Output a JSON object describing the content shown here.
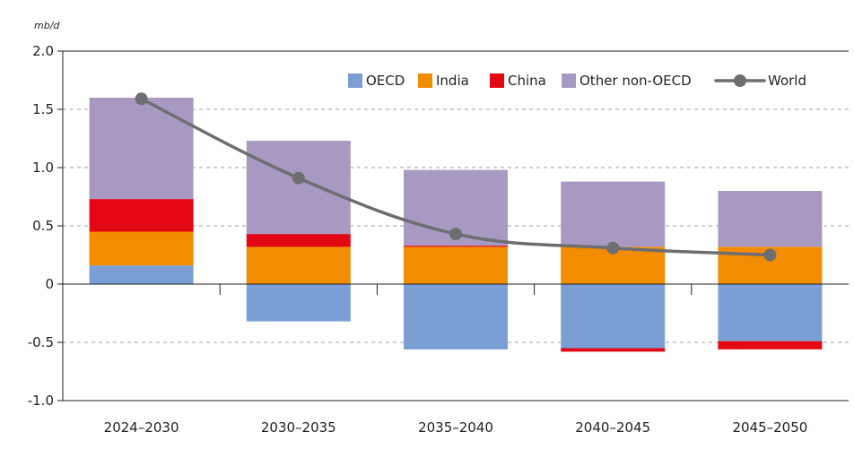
{
  "chart_data": {
    "type": "bar",
    "stacked": true,
    "unit_label": "mb/d",
    "title": "",
    "xlabel": "",
    "ylabel": "",
    "ylim": [
      -1.0,
      2.0
    ],
    "yticks": [
      2.0,
      1.5,
      1.0,
      0.5,
      0,
      -0.5,
      -1.0
    ],
    "ytick_labels": [
      "2.0",
      "1.5",
      "1.0",
      "0.5",
      "0",
      "-0.5",
      "-1.0"
    ],
    "grid": "horizontal dashed",
    "legend_position": "top-right",
    "categories": [
      "2024–2030",
      "2030–2035",
      "2035–2040",
      "2040–2045",
      "2045–2050"
    ],
    "series": [
      {
        "name": "OECD",
        "color": "#7b9fd4",
        "values": [
          0.16,
          -0.32,
          -0.56,
          -0.55,
          -0.49
        ]
      },
      {
        "name": "India",
        "color": "#f28c00",
        "values": [
          0.29,
          0.32,
          0.32,
          0.32,
          0.32
        ]
      },
      {
        "name": "China",
        "color": "#e30613",
        "values": [
          0.28,
          0.11,
          0.01,
          -0.03,
          -0.07
        ]
      },
      {
        "name": "Other non-OECD",
        "color": "#a899c2",
        "values": [
          0.87,
          0.8,
          0.65,
          0.56,
          0.48
        ]
      }
    ],
    "line_series": {
      "name": "World",
      "color": "#6d6e71",
      "values": [
        1.59,
        0.91,
        0.43,
        0.31,
        0.25
      ]
    }
  }
}
